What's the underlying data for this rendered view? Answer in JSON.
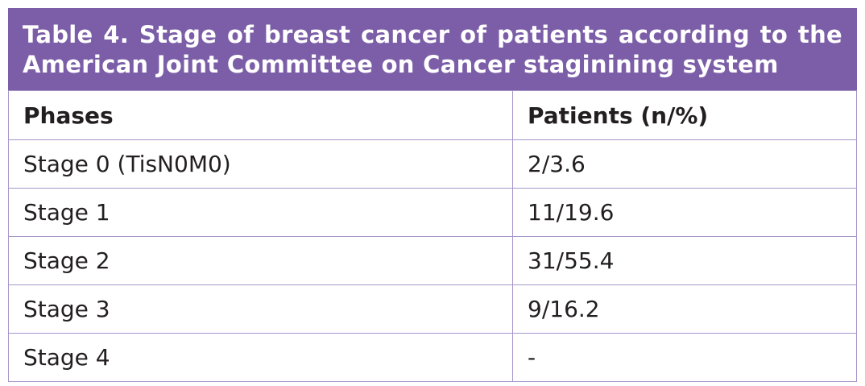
{
  "table": {
    "title": "Table 4. Stage of breast cancer of patients according to the American Joint Committee on Cancer staginining system",
    "header": [
      "Phases",
      "Patients (n/%)"
    ],
    "rows": [
      [
        "Stage 0 (TisN0M0)",
        "2/3.6"
      ],
      [
        "Stage 1",
        "11/19.6"
      ],
      [
        "Stage 2",
        "31/55.4"
      ],
      [
        "Stage 3",
        "9/16.2"
      ],
      [
        "Stage 4",
        "-"
      ]
    ]
  }
}
